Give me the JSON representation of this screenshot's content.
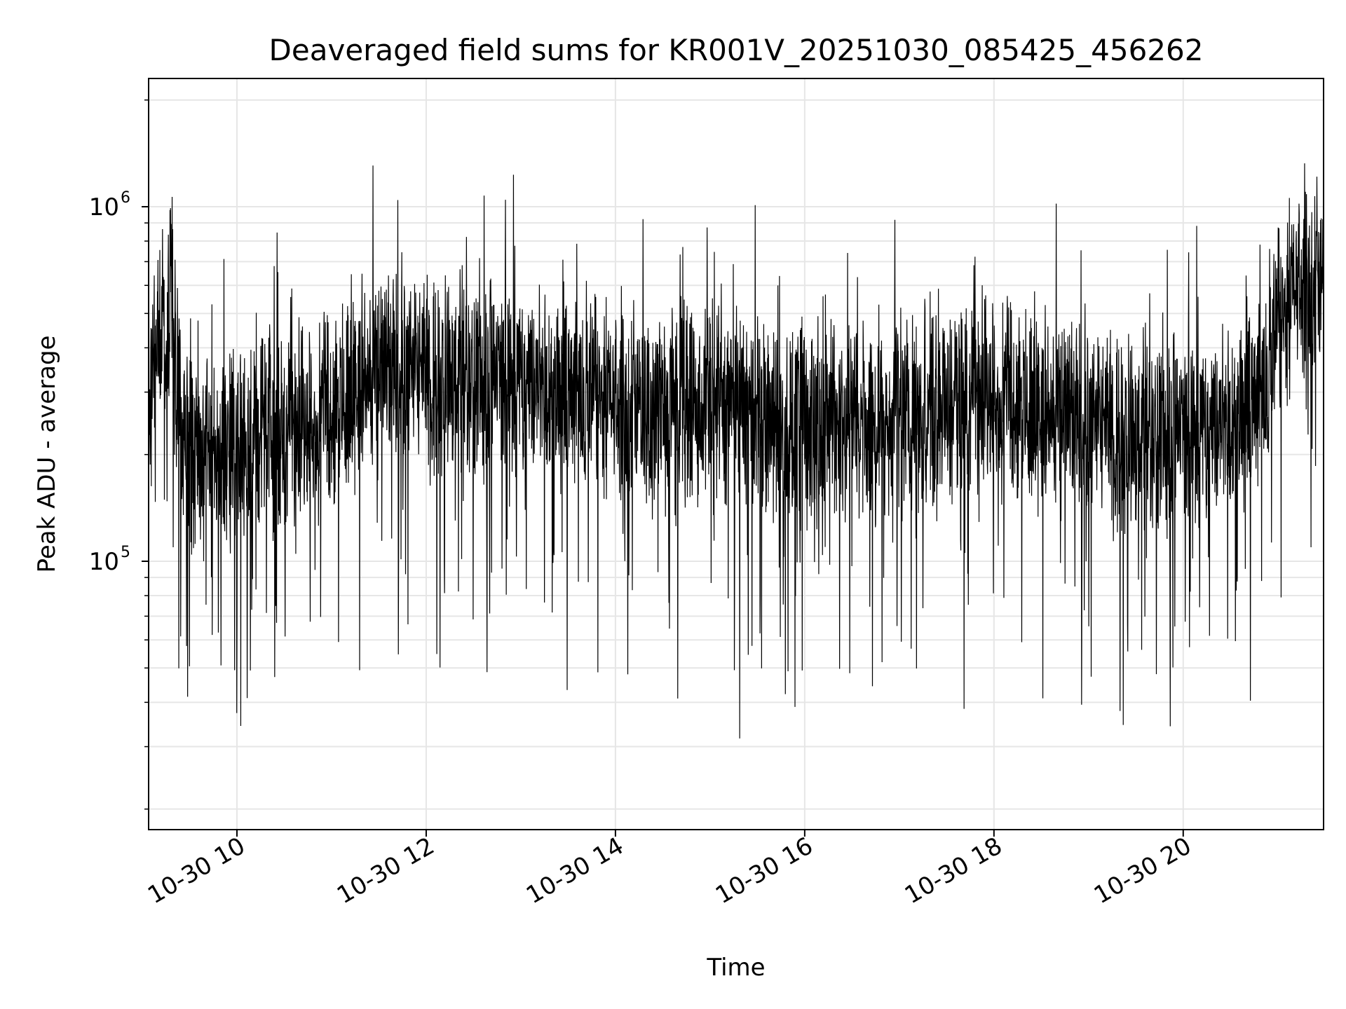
{
  "chart_data": {
    "type": "line",
    "title": "Deaveraged field sums for KR001V_20251030_085425_456262",
    "xlabel": "Time",
    "ylabel": "Peak ADU - average",
    "x_is_time": true,
    "xlim": [
      "2025-10-30T09:04:00",
      "2025-10-30T21:29:00"
    ],
    "ylim": [
      17500,
      2300000
    ],
    "yscale": "log",
    "grid": true,
    "x_ticks": [
      {
        "t": "2025-10-30T10:00:00",
        "label": "10-30 10"
      },
      {
        "t": "2025-10-30T12:00:00",
        "label": "10-30 12"
      },
      {
        "t": "2025-10-30T14:00:00",
        "label": "10-30 14"
      },
      {
        "t": "2025-10-30T16:00:00",
        "label": "10-30 16"
      },
      {
        "t": "2025-10-30T18:00:00",
        "label": "10-30 18"
      },
      {
        "t": "2025-10-30T20:00:00",
        "label": "10-30 20"
      }
    ],
    "y_major_ticks": [
      {
        "value": 100000,
        "base": "10",
        "exp": "5"
      },
      {
        "value": 1000000,
        "base": "10",
        "exp": "6"
      }
    ],
    "y_minor_ticks": [
      20000,
      30000,
      40000,
      50000,
      60000,
      70000,
      80000,
      90000,
      200000,
      300000,
      400000,
      500000,
      600000,
      700000,
      800000,
      900000,
      2000000
    ],
    "colors": {
      "line": "#000000",
      "grid": "#e6e6e6",
      "axes": "#000000"
    },
    "series": [
      {
        "x": [
          "2025-10-30T09:05:00",
          "2025-10-30T09:10:00",
          "2025-10-30T09:15:00",
          "2025-10-30T09:18:00",
          "2025-10-30T09:25:00",
          "2025-10-30T09:40:00",
          "2025-10-30T10:00:00",
          "2025-10-30T10:20:00",
          "2025-10-30T10:40:00",
          "2025-10-30T11:00:00",
          "2025-10-30T11:20:00",
          "2025-10-30T11:40:00",
          "2025-10-30T12:00:00",
          "2025-10-30T12:30:00",
          "2025-10-30T13:00:00",
          "2025-10-30T13:30:00",
          "2025-10-30T14:00:00",
          "2025-10-30T14:30:00",
          "2025-10-30T15:00:00",
          "2025-10-30T15:30:00",
          "2025-10-30T16:00:00",
          "2025-10-30T16:30:00",
          "2025-10-30T17:00:00",
          "2025-10-30T17:30:00",
          "2025-10-30T18:00:00",
          "2025-10-30T18:30:00",
          "2025-10-30T19:00:00",
          "2025-10-30T19:30:00",
          "2025-10-30T20:00:00",
          "2025-10-30T20:30:00",
          "2025-10-30T20:50:00",
          "2025-10-30T21:00:00",
          "2025-10-30T21:10:00",
          "2025-10-30T21:20:00",
          "2025-10-30T21:28:00"
        ],
        "values": [
          300000,
          450000,
          380000,
          550000,
          210000,
          200000,
          215000,
          230000,
          240000,
          270000,
          330000,
          340000,
          330000,
          320000,
          330000,
          300000,
          290000,
          260000,
          280000,
          250000,
          240000,
          250000,
          260000,
          280000,
          300000,
          270000,
          240000,
          220000,
          230000,
          250000,
          300000,
          450000,
          600000,
          650000,
          600000
        ]
      }
    ]
  }
}
